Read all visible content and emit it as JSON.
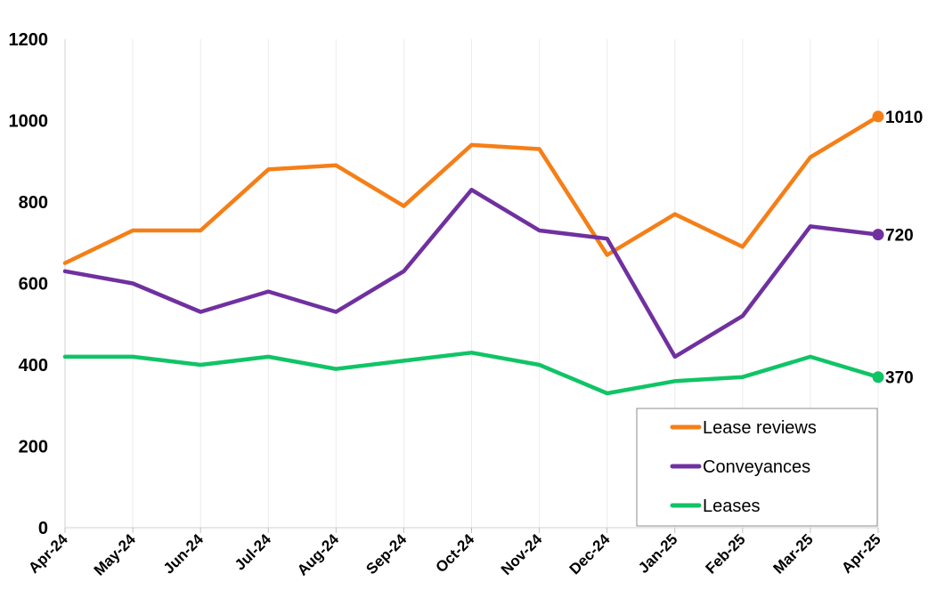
{
  "chart_data": {
    "type": "line",
    "title": "",
    "xlabel": "",
    "ylabel": "",
    "ylim": [
      0,
      1200
    ],
    "yticks": [
      "0",
      "200",
      "400",
      "600",
      "800",
      "1000",
      "1200"
    ],
    "categories": [
      "Apr-24",
      "May-24",
      "Jun-24",
      "Jul-24",
      "Aug-24",
      "Sep-24",
      "Oct-24",
      "Nov-24",
      "Dec-24",
      "Jan-25",
      "Feb-25",
      "Mar-25",
      "Apr-25"
    ],
    "grid": "vertical",
    "legend_position": "bottom-right",
    "series": [
      {
        "name": "Lease reviews",
        "color": "#F57F17",
        "end_label": "1010",
        "values": [
          650,
          730,
          730,
          880,
          890,
          790,
          940,
          930,
          670,
          770,
          690,
          910,
          1010
        ]
      },
      {
        "name": "Conveyances",
        "color": "#7030A0",
        "end_label": "720",
        "values": [
          630,
          600,
          530,
          580,
          530,
          630,
          830,
          730,
          710,
          420,
          520,
          740,
          720
        ]
      },
      {
        "name": "Leases",
        "color": "#10C466",
        "end_label": "370",
        "values": [
          420,
          420,
          400,
          420,
          390,
          410,
          430,
          400,
          330,
          360,
          370,
          420,
          370
        ]
      }
    ]
  }
}
